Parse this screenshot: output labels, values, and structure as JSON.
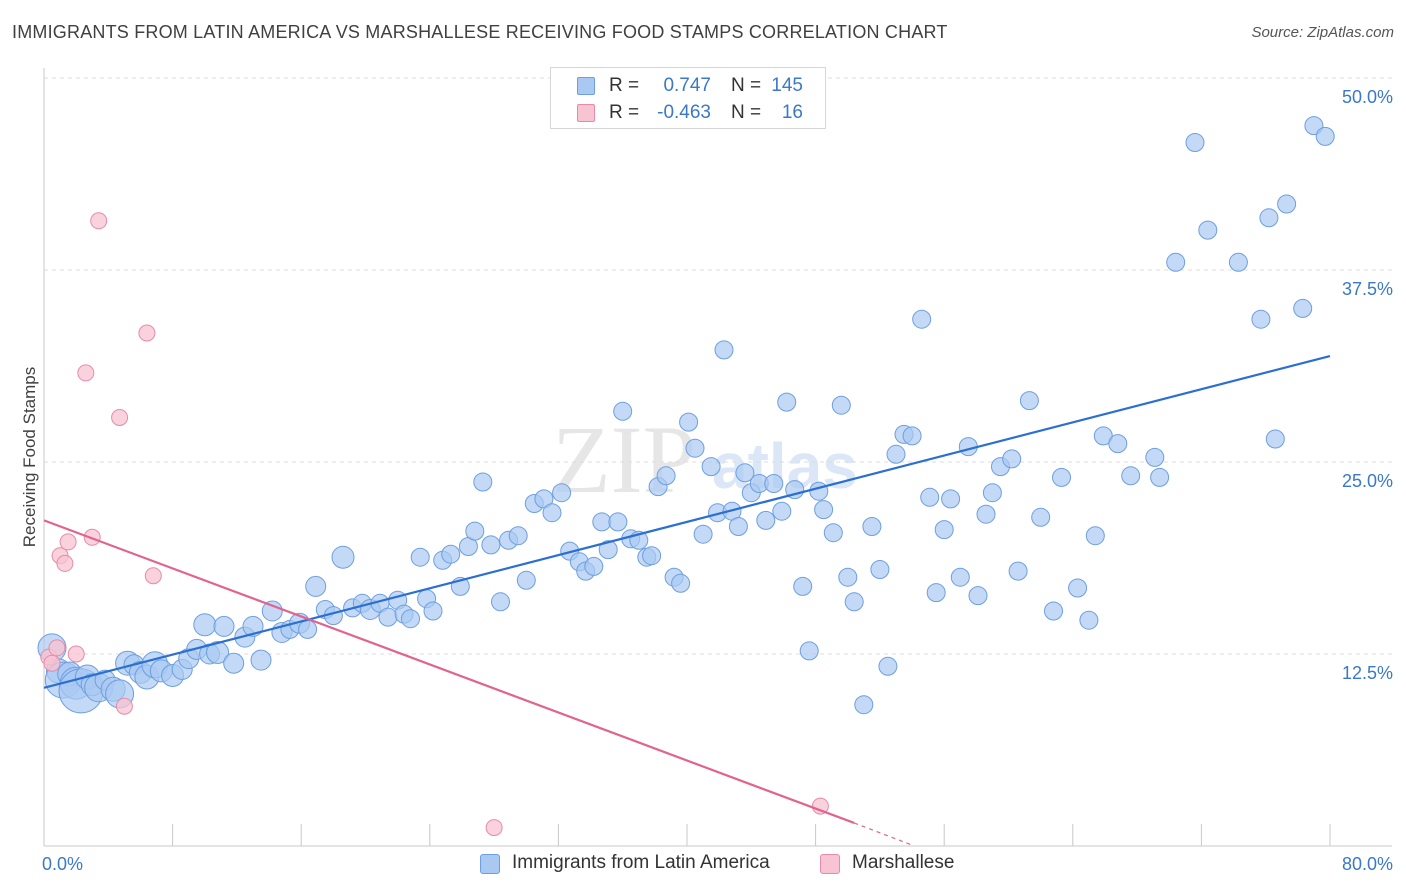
{
  "title": "IMMIGRANTS FROM LATIN AMERICA VS MARSHALLESE RECEIVING FOOD STAMPS CORRELATION CHART",
  "source": "Source: ZipAtlas.com",
  "watermark": {
    "zip": "ZIP",
    "atlas": "atlas"
  },
  "legend": {
    "rows": [
      {
        "r_label": "R =",
        "r_value": "0.747",
        "n_label": "N =",
        "n_value": "145",
        "color": "#a9c9f2",
        "border": "#6d9fe0"
      },
      {
        "r_label": "R =",
        "r_value": "-0.463",
        "n_label": "N =",
        "n_value": "16",
        "color": "#f8c3d2",
        "border": "#e88aa8"
      }
    ]
  },
  "bottom_legend": [
    {
      "label": "Immigrants from Latin America",
      "color": "#a9c9f2",
      "border": "#6d9fe0"
    },
    {
      "label": "Marshallese",
      "color": "#f8c3d2",
      "border": "#e88aa8"
    }
  ],
  "chart_data": {
    "type": "scatter",
    "title": "IMMIGRANTS FROM LATIN AMERICA VS MARSHALLESE RECEIVING FOOD STAMPS CORRELATION CHART",
    "xlabel": "",
    "ylabel": "Receiving Food Stamps",
    "xlim": [
      0,
      80
    ],
    "ylim": [
      0,
      50
    ],
    "x_tick_labels": [
      "0.0%",
      "80.0%"
    ],
    "y_ticks": [
      12.5,
      25.0,
      37.5,
      50.0
    ],
    "y_tick_labels": [
      "12.5%",
      "25.0%",
      "37.5%",
      "50.0%"
    ],
    "grid": "horizontal dashed",
    "legend_position": "top-center",
    "series": [
      {
        "name": "Immigrants from Latin America",
        "color": "#6d9fe0",
        "fill": "#a9c9f2",
        "trend": {
          "x": [
            0,
            80
          ],
          "y": [
            10.3,
            31.9
          ],
          "color": "#2b6fd0"
        },
        "points": [
          [
            0.5,
            12.9,
            14
          ],
          [
            0.9,
            11.4,
            12
          ],
          [
            1.2,
            10.8,
            18
          ],
          [
            1.6,
            11.2,
            12
          ],
          [
            2.0,
            10.6,
            16
          ],
          [
            2.3,
            10.1,
            22
          ],
          [
            2.7,
            11.0,
            12
          ],
          [
            3.0,
            10.5,
            11
          ],
          [
            3.4,
            10.3,
            14
          ],
          [
            3.8,
            10.8,
            10
          ],
          [
            4.3,
            10.2,
            12
          ],
          [
            4.7,
            9.9,
            14
          ],
          [
            5.2,
            11.9,
            12
          ],
          [
            5.6,
            11.8,
            10
          ],
          [
            6.0,
            11.3,
            11
          ],
          [
            6.4,
            11.0,
            12
          ],
          [
            6.9,
            11.8,
            13
          ],
          [
            7.3,
            11.4,
            11
          ],
          [
            8.0,
            11.1,
            11
          ],
          [
            8.6,
            11.5,
            10
          ],
          [
            9.0,
            12.2,
            10
          ],
          [
            9.5,
            12.8,
            10
          ],
          [
            10.0,
            14.4,
            11
          ],
          [
            10.3,
            12.5,
            10
          ],
          [
            10.8,
            12.6,
            11
          ],
          [
            11.2,
            14.3,
            10
          ],
          [
            11.8,
            11.9,
            10
          ],
          [
            12.5,
            13.6,
            10
          ],
          [
            13.0,
            14.3,
            10
          ],
          [
            13.5,
            12.1,
            10
          ],
          [
            14.2,
            15.3,
            10
          ],
          [
            14.8,
            13.9,
            10
          ],
          [
            15.3,
            14.1,
            9
          ],
          [
            15.9,
            14.5,
            10
          ],
          [
            16.4,
            14.1,
            9
          ],
          [
            16.9,
            16.9,
            10
          ],
          [
            17.5,
            15.4,
            9
          ],
          [
            18.0,
            15.0,
            9
          ],
          [
            18.6,
            18.8,
            11
          ],
          [
            19.2,
            15.5,
            9
          ],
          [
            19.8,
            15.8,
            9
          ],
          [
            20.3,
            15.4,
            10
          ],
          [
            20.9,
            15.8,
            9
          ],
          [
            21.4,
            14.9,
            9
          ],
          [
            22.0,
            16.0,
            9
          ],
          [
            22.4,
            15.1,
            9
          ],
          [
            22.8,
            14.8,
            9
          ],
          [
            23.4,
            18.8,
            9
          ],
          [
            23.8,
            16.1,
            9
          ],
          [
            24.2,
            15.3,
            9
          ],
          [
            24.8,
            18.6,
            9
          ],
          [
            25.3,
            19.0,
            9
          ],
          [
            25.9,
            16.9,
            9
          ],
          [
            26.4,
            19.5,
            9
          ],
          [
            26.8,
            20.5,
            9
          ],
          [
            27.3,
            23.7,
            9
          ],
          [
            27.8,
            19.6,
            9
          ],
          [
            28.4,
            15.9,
            9
          ],
          [
            28.9,
            19.9,
            9
          ],
          [
            29.5,
            20.2,
            9
          ],
          [
            30.0,
            17.3,
            9
          ],
          [
            30.5,
            22.3,
            9
          ],
          [
            31.1,
            22.6,
            9
          ],
          [
            31.6,
            21.7,
            9
          ],
          [
            32.2,
            23.0,
            9
          ],
          [
            32.7,
            19.2,
            9
          ],
          [
            33.3,
            18.5,
            9
          ],
          [
            33.7,
            17.9,
            9
          ],
          [
            34.2,
            18.2,
            9
          ],
          [
            34.7,
            21.1,
            9
          ],
          [
            35.1,
            19.3,
            9
          ],
          [
            35.7,
            21.1,
            9
          ],
          [
            36.0,
            28.3,
            9
          ],
          [
            36.5,
            20.0,
            9
          ],
          [
            37.0,
            19.9,
            9
          ],
          [
            37.5,
            18.8,
            9
          ],
          [
            37.8,
            18.9,
            9
          ],
          [
            38.2,
            23.4,
            9
          ],
          [
            38.7,
            24.1,
            9
          ],
          [
            39.2,
            17.5,
            9
          ],
          [
            39.6,
            17.1,
            9
          ],
          [
            40.1,
            27.6,
            9
          ],
          [
            40.5,
            25.9,
            9
          ],
          [
            41.0,
            20.3,
            9
          ],
          [
            41.5,
            24.7,
            9
          ],
          [
            41.9,
            21.7,
            9
          ],
          [
            42.3,
            32.3,
            9
          ],
          [
            42.8,
            21.8,
            9
          ],
          [
            43.2,
            20.8,
            9
          ],
          [
            43.6,
            24.3,
            9
          ],
          [
            44.0,
            23.0,
            9
          ],
          [
            44.5,
            23.6,
            9
          ],
          [
            44.9,
            21.2,
            9
          ],
          [
            45.4,
            23.6,
            9
          ],
          [
            45.9,
            21.8,
            9
          ],
          [
            46.2,
            28.9,
            9
          ],
          [
            46.7,
            23.2,
            9
          ],
          [
            47.2,
            16.9,
            9
          ],
          [
            47.6,
            12.7,
            9
          ],
          [
            48.2,
            23.1,
            9
          ],
          [
            48.5,
            21.9,
            9
          ],
          [
            49.1,
            20.4,
            9
          ],
          [
            49.6,
            28.7,
            9
          ],
          [
            50.0,
            17.5,
            9
          ],
          [
            50.4,
            15.9,
            9
          ],
          [
            51.0,
            9.2,
            9
          ],
          [
            51.5,
            20.8,
            9
          ],
          [
            52.0,
            18.0,
            9
          ],
          [
            52.5,
            11.7,
            9
          ],
          [
            53.0,
            25.5,
            9
          ],
          [
            53.5,
            26.8,
            9
          ],
          [
            54.0,
            26.7,
            9
          ],
          [
            54.6,
            34.3,
            9
          ],
          [
            55.1,
            22.7,
            9
          ],
          [
            55.5,
            16.5,
            9
          ],
          [
            56.0,
            20.6,
            9
          ],
          [
            56.4,
            22.6,
            9
          ],
          [
            57.0,
            17.5,
            9
          ],
          [
            57.5,
            26.0,
            9
          ],
          [
            58.1,
            16.3,
            9
          ],
          [
            58.6,
            21.6,
            9
          ],
          [
            59.0,
            23.0,
            9
          ],
          [
            59.5,
            24.7,
            9
          ],
          [
            60.2,
            25.2,
            9
          ],
          [
            60.6,
            17.9,
            9
          ],
          [
            61.3,
            29.0,
            9
          ],
          [
            62.0,
            21.4,
            9
          ],
          [
            62.8,
            15.3,
            9
          ],
          [
            63.3,
            24.0,
            9
          ],
          [
            64.3,
            16.8,
            9
          ],
          [
            65.0,
            14.7,
            9
          ],
          [
            65.4,
            20.2,
            9
          ],
          [
            65.9,
            26.7,
            9
          ],
          [
            66.8,
            26.2,
            9
          ],
          [
            67.6,
            24.1,
            9
          ],
          [
            69.1,
            25.3,
            9
          ],
          [
            69.4,
            24.0,
            9
          ],
          [
            70.4,
            38.0,
            9
          ],
          [
            71.6,
            45.8,
            9
          ],
          [
            72.4,
            40.1,
            9
          ],
          [
            74.3,
            38.0,
            9
          ],
          [
            75.7,
            34.3,
            9
          ],
          [
            76.2,
            40.9,
            9
          ],
          [
            76.6,
            26.5,
            9
          ],
          [
            77.3,
            41.8,
            9
          ],
          [
            78.3,
            35.0,
            9
          ],
          [
            79.0,
            46.9,
            9
          ],
          [
            79.7,
            46.2,
            9
          ]
        ]
      },
      {
        "name": "Marshallese",
        "color": "#e88aa8",
        "fill": "#f8c3d2",
        "trend": {
          "x": [
            0,
            50.4
          ],
          "y": [
            21.2,
            1.5
          ],
          "dashed_to": [
            53.9,
            0.1
          ],
          "color": "#e0648f"
        },
        "points": [
          [
            0.3,
            12.3,
            8
          ],
          [
            0.5,
            11.9,
            8
          ],
          [
            0.8,
            12.9,
            8
          ],
          [
            1.0,
            18.9,
            8
          ],
          [
            1.3,
            18.4,
            8
          ],
          [
            1.5,
            19.8,
            8
          ],
          [
            2.0,
            12.5,
            8
          ],
          [
            2.6,
            30.8,
            8
          ],
          [
            3.0,
            20.1,
            8
          ],
          [
            3.4,
            40.7,
            8
          ],
          [
            4.7,
            27.9,
            8
          ],
          [
            5.0,
            9.1,
            8
          ],
          [
            6.4,
            33.4,
            8
          ],
          [
            6.8,
            17.6,
            8
          ],
          [
            28.0,
            1.2,
            8
          ],
          [
            48.3,
            2.6,
            8
          ]
        ]
      }
    ]
  }
}
